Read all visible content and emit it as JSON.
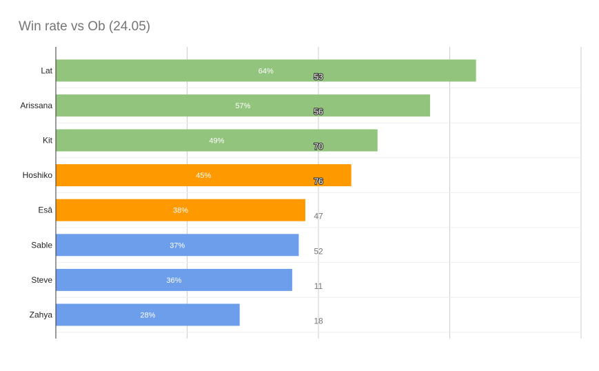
{
  "chart_data": {
    "type": "bar",
    "orientation": "horizontal",
    "title": "Win rate vs Ob (24.05)",
    "xlabel": "",
    "ylabel": "",
    "xlim": [
      0,
      0.8
    ],
    "grid": true,
    "categories": [
      "Lat",
      "Arissana",
      "Kit",
      "Hoshiko",
      "Esâ",
      "Sable",
      "Steve",
      "Zahya"
    ],
    "values": [
      0.64,
      0.57,
      0.49,
      0.45,
      0.38,
      0.37,
      0.36,
      0.28
    ],
    "value_labels": [
      "64%",
      "57%",
      "49%",
      "45%",
      "38%",
      "37%",
      "36%",
      "28%"
    ],
    "counts": [
      "53",
      "56",
      "70",
      "76",
      "47",
      "52",
      "11",
      "18"
    ],
    "bar_colors": [
      "#93c47d",
      "#93c47d",
      "#93c47d",
      "#ff9900",
      "#ff9900",
      "#6d9eeb",
      "#6d9eeb",
      "#6d9eeb"
    ]
  }
}
